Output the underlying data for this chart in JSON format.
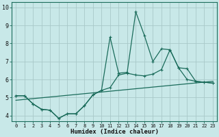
{
  "xlabel": "Humidex (Indice chaleur)",
  "background_color": "#c8e8e8",
  "line_color": "#1a6b5a",
  "grid_color": "#a8c8c8",
  "xlim": [
    -0.5,
    23.5
  ],
  "ylim": [
    3.7,
    10.3
  ],
  "yticks": [
    4,
    5,
    6,
    7,
    8,
    9,
    10
  ],
  "xticks": [
    0,
    1,
    2,
    3,
    4,
    5,
    6,
    7,
    8,
    9,
    10,
    11,
    12,
    13,
    14,
    15,
    16,
    17,
    18,
    19,
    20,
    21,
    22,
    23
  ],
  "series_smooth_x": [
    0,
    1,
    2,
    3,
    4,
    5,
    6,
    7,
    8,
    9,
    10,
    11,
    12,
    13,
    14,
    15,
    16,
    17,
    18,
    19,
    20,
    21,
    22,
    23
  ],
  "series_smooth_y": [
    5.1,
    5.1,
    4.65,
    4.35,
    4.3,
    3.85,
    4.1,
    4.1,
    4.55,
    5.15,
    5.4,
    5.55,
    6.25,
    6.35,
    6.25,
    6.2,
    6.3,
    6.55,
    7.65,
    6.65,
    6.0,
    5.9,
    5.85,
    5.8
  ],
  "series_spiky_x": [
    0,
    1,
    2,
    3,
    4,
    5,
    6,
    7,
    8,
    9,
    10,
    11,
    12,
    13,
    14,
    15,
    16,
    17,
    18,
    19,
    20,
    21,
    22,
    23
  ],
  "series_spiky_y": [
    5.1,
    5.1,
    4.65,
    4.35,
    4.3,
    3.85,
    4.1,
    4.1,
    4.55,
    5.15,
    5.4,
    8.35,
    6.35,
    6.4,
    9.75,
    8.45,
    7.0,
    7.7,
    7.65,
    6.65,
    6.6,
    5.9,
    5.85,
    5.8
  ],
  "trend_x": [
    0,
    23
  ],
  "trend_y": [
    4.85,
    5.9
  ],
  "linewidth": 0.9,
  "markersize": 3.0
}
